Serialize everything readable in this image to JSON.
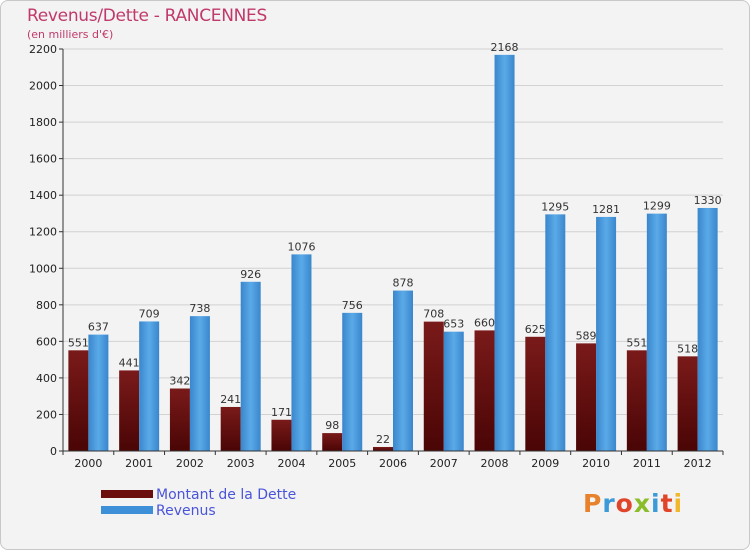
{
  "title": "Revenus/Dette - RANCENNES",
  "subtitle": "(en milliers d'€)",
  "logo": {
    "text": "Proxiti",
    "colors": [
      "#e8812b",
      "#3c9ad8",
      "#e0452a",
      "#8bbd2a",
      "#3c9ad8",
      "#e0452a",
      "#f0b82a"
    ]
  },
  "legend": [
    {
      "label": "Montant de la Dette",
      "color": "#6b0d0d"
    },
    {
      "label": "Revenus",
      "color": "#3d8fd8"
    }
  ],
  "chart_data": {
    "type": "bar",
    "title": "Revenus/Dette - RANCENNES",
    "ylabel": "(en milliers d'€)",
    "xlabel": "",
    "ylim": [
      0,
      2200
    ],
    "yticks": [
      0,
      200,
      400,
      600,
      800,
      1000,
      1200,
      1400,
      1600,
      1800,
      2000,
      2200
    ],
    "grid": true,
    "categories": [
      "2000",
      "2001",
      "2002",
      "2003",
      "2004",
      "2005",
      "2006",
      "2007",
      "2008",
      "2009",
      "2010",
      "2011",
      "2012"
    ],
    "series": [
      {
        "name": "Montant de la Dette",
        "color": "#6b0d0d",
        "values": [
          551,
          441,
          342,
          241,
          171,
          98,
          22,
          708,
          660,
          625,
          589,
          551,
          518
        ]
      },
      {
        "name": "Revenus",
        "color": "#3d8fd8",
        "values": [
          637,
          709,
          738,
          926,
          1076,
          756,
          878,
          653,
          2168,
          1295,
          1281,
          1299,
          1330
        ]
      }
    ]
  }
}
